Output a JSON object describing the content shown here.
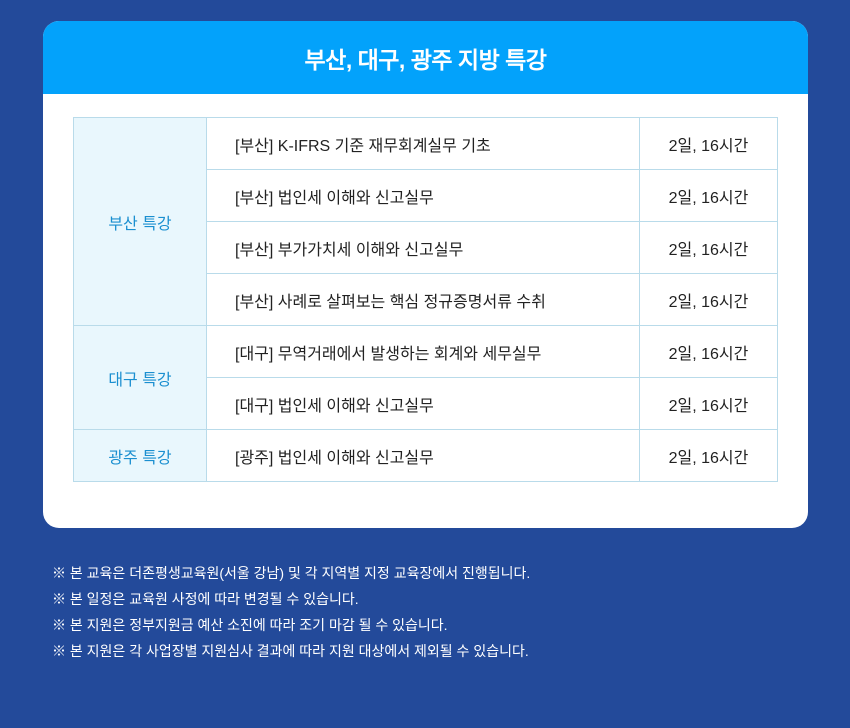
{
  "title": "부산, 대구, 광주 지방 특강",
  "groups": [
    {
      "region": "부산 특강",
      "courses": [
        {
          "name": "[부산] K-IFRS 기준 재무회계실무 기초",
          "duration": "2일, 16시간"
        },
        {
          "name": "[부산] 법인세 이해와 신고실무",
          "duration": "2일, 16시간"
        },
        {
          "name": "[부산] 부가가치세 이해와 신고실무",
          "duration": "2일, 16시간"
        },
        {
          "name": "[부산] 사례로 살펴보는 핵심 정규증명서류 수취",
          "duration": "2일, 16시간"
        }
      ]
    },
    {
      "region": "대구 특강",
      "courses": [
        {
          "name": "[대구] 무역거래에서 발생하는 회계와 세무실무",
          "duration": "2일, 16시간"
        },
        {
          "name": "[대구] 법인세 이해와 신고실무",
          "duration": "2일, 16시간"
        }
      ]
    },
    {
      "region": "광주 특강",
      "courses": [
        {
          "name": "[광주] 법인세 이해와 신고실무",
          "duration": "2일, 16시간"
        }
      ]
    }
  ],
  "notes": [
    "※ 본 교육은 더존평생교육원(서울 강남) 및 각 지역별 지정 교육장에서 진행됩니다.",
    "※ 본 일정은 교육원 사정에 따라 변경될 수 있습니다.",
    "※ 본 지원은 정부지원금 예산 소진에 따라 조기 마감 될 수 있습니다.",
    "※ 본 지원은 각 사업장별 지원심사 결과에 따라 지원 대상에서 제외될 수 있습니다."
  ],
  "colors": {
    "background": "#234a9a",
    "header": "#03a2fb",
    "region_text": "#1a8fd0",
    "region_bg": "#e9f7fd"
  }
}
